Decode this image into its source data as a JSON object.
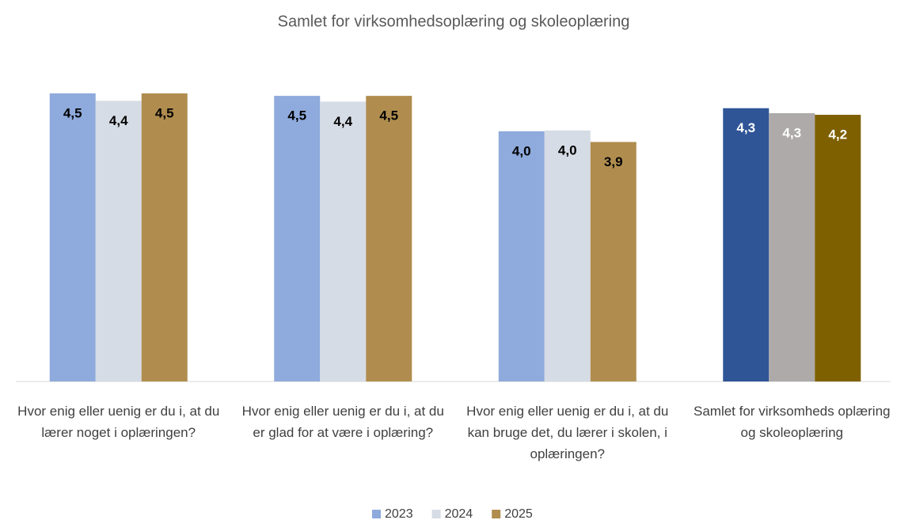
{
  "chart_data": {
    "type": "bar",
    "title": "Samlet for virksomhedsoplæring og skoleoplæring",
    "categories": [
      "Hvor enig eller uenig er du i, at du lærer noget i oplæringen?",
      "Hvor enig eller uenig er du i, at du er glad for at være i oplæring?",
      "Hvor enig eller uenig er du i, at du kan bruge det, du lærer i skolen, i oplæringen?",
      "Samlet for virksomheds oplæring og skoleoplæring"
    ],
    "series": [
      {
        "name": "2023",
        "color": "#8faadc",
        "colors": [
          "#8faadc",
          "#8faadc",
          "#8faadc",
          "#2f5597"
        ],
        "label_colors": [
          "#000000",
          "#000000",
          "#000000",
          "#ffffff"
        ],
        "values": [
          4.5,
          4.47,
          4.04,
          4.32
        ],
        "value_labels": [
          "4,5",
          "4,5",
          "4,0",
          "4,3"
        ]
      },
      {
        "name": "2024",
        "color": "#d6dce5",
        "colors": [
          "#d6dce5",
          "#d6dce5",
          "#d6dce5",
          "#aeaaaa"
        ],
        "label_colors": [
          "#000000",
          "#000000",
          "#000000",
          "#ffffff"
        ],
        "values": [
          4.41,
          4.4,
          4.05,
          4.26
        ],
        "value_labels": [
          "4,4",
          "4,4",
          "4,0",
          "4,3"
        ]
      },
      {
        "name": "2025",
        "color": "#b08d4f",
        "colors": [
          "#b08d4f",
          "#b08d4f",
          "#b08d4f",
          "#7f6000"
        ],
        "label_colors": [
          "#000000",
          "#000000",
          "#000000",
          "#ffffff"
        ],
        "values": [
          4.5,
          4.47,
          3.91,
          4.24
        ],
        "value_labels": [
          "4,5",
          "4,5",
          "3,9",
          "4,2"
        ]
      }
    ],
    "ylim": [
      1,
      5
    ]
  }
}
